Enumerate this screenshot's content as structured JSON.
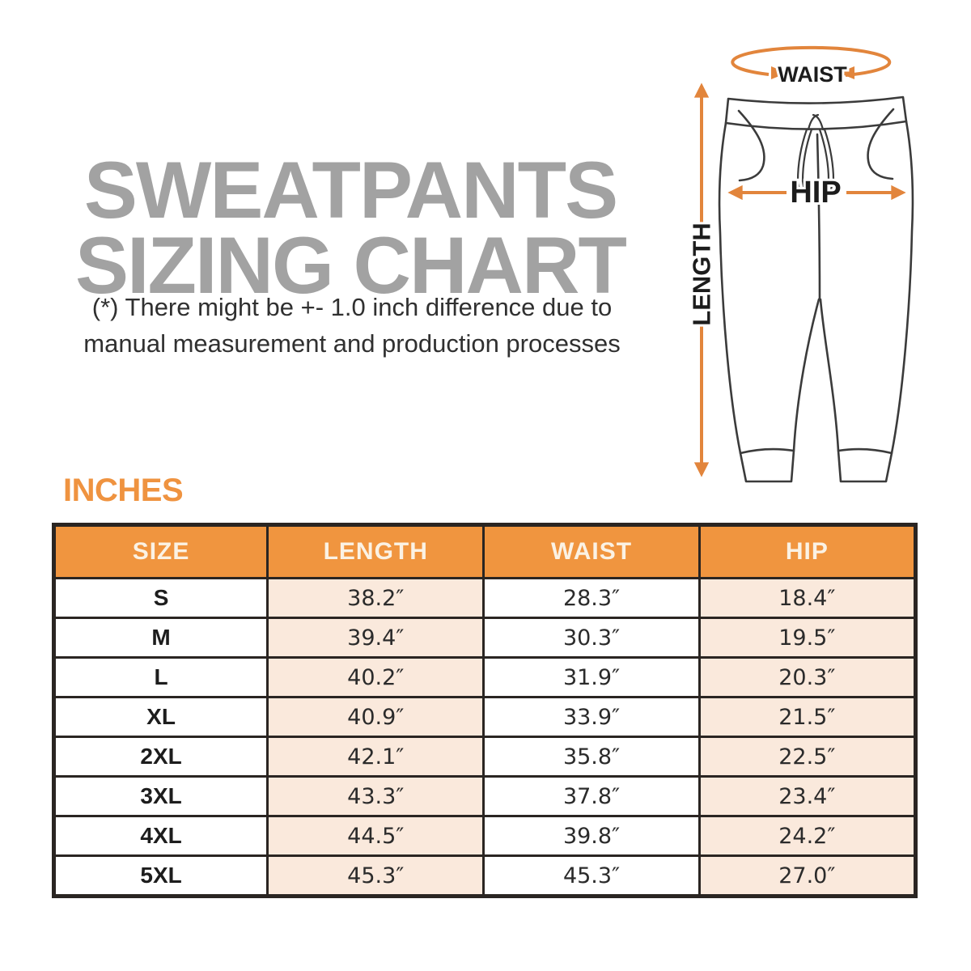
{
  "title": {
    "line1": "SWEATPANTS",
    "line2": "SIZING CHART"
  },
  "disclaimer": {
    "line1": "(*) There might be +- 1.0 inch difference due to",
    "line2": "manual measurement and production processes"
  },
  "diagram": {
    "waist_label": "WAIST",
    "hip_label": "HIP",
    "length_label": "LENGTH"
  },
  "units_label": "INCHES",
  "table": {
    "headers": [
      "SIZE",
      "LENGTH",
      "WAIST",
      "HIP"
    ],
    "rows": [
      [
        "S",
        "38.2″",
        "28.3″",
        "18.4″"
      ],
      [
        "M",
        "39.4″",
        "30.3″",
        "19.5″"
      ],
      [
        "L",
        "40.2″",
        "31.9″",
        "20.3″"
      ],
      [
        "XL",
        "40.9″",
        "33.9″",
        "21.5″"
      ],
      [
        "2XL",
        "42.1″",
        "35.8″",
        "22.5″"
      ],
      [
        "3XL",
        "43.3″",
        "37.8″",
        "23.4″"
      ],
      [
        "4XL",
        "44.5″",
        "39.8″",
        "24.2″"
      ],
      [
        "5XL",
        "45.3″",
        "45.3″",
        "27.0″"
      ]
    ]
  },
  "chart_data": {
    "type": "table",
    "title": "SWEATPANTS SIZING CHART",
    "units": "INCHES",
    "columns": [
      "SIZE",
      "LENGTH",
      "WAIST",
      "HIP"
    ],
    "rows": [
      {
        "size": "S",
        "length": 38.2,
        "waist": 28.3,
        "hip": 18.4
      },
      {
        "size": "M",
        "length": 39.4,
        "waist": 30.3,
        "hip": 19.5
      },
      {
        "size": "L",
        "length": 40.2,
        "waist": 31.9,
        "hip": 20.3
      },
      {
        "size": "XL",
        "length": 40.9,
        "waist": 33.9,
        "hip": 21.5
      },
      {
        "size": "2XL",
        "length": 42.1,
        "waist": 35.8,
        "hip": 22.5
      },
      {
        "size": "3XL",
        "length": 43.3,
        "waist": 37.8,
        "hip": 23.4
      },
      {
        "size": "4XL",
        "length": 44.5,
        "waist": 39.8,
        "hip": 24.2
      },
      {
        "size": "5XL",
        "length": 45.3,
        "waist": 45.3,
        "hip": 27.0
      }
    ]
  },
  "colors": {
    "header_orange": "#f0953f",
    "arrow_orange": "#e2853c",
    "inches_orange": "#ef9340",
    "row_peach": "#fae9dc",
    "title_gray": "#a2a2a2",
    "table_border": "#2a2522"
  }
}
